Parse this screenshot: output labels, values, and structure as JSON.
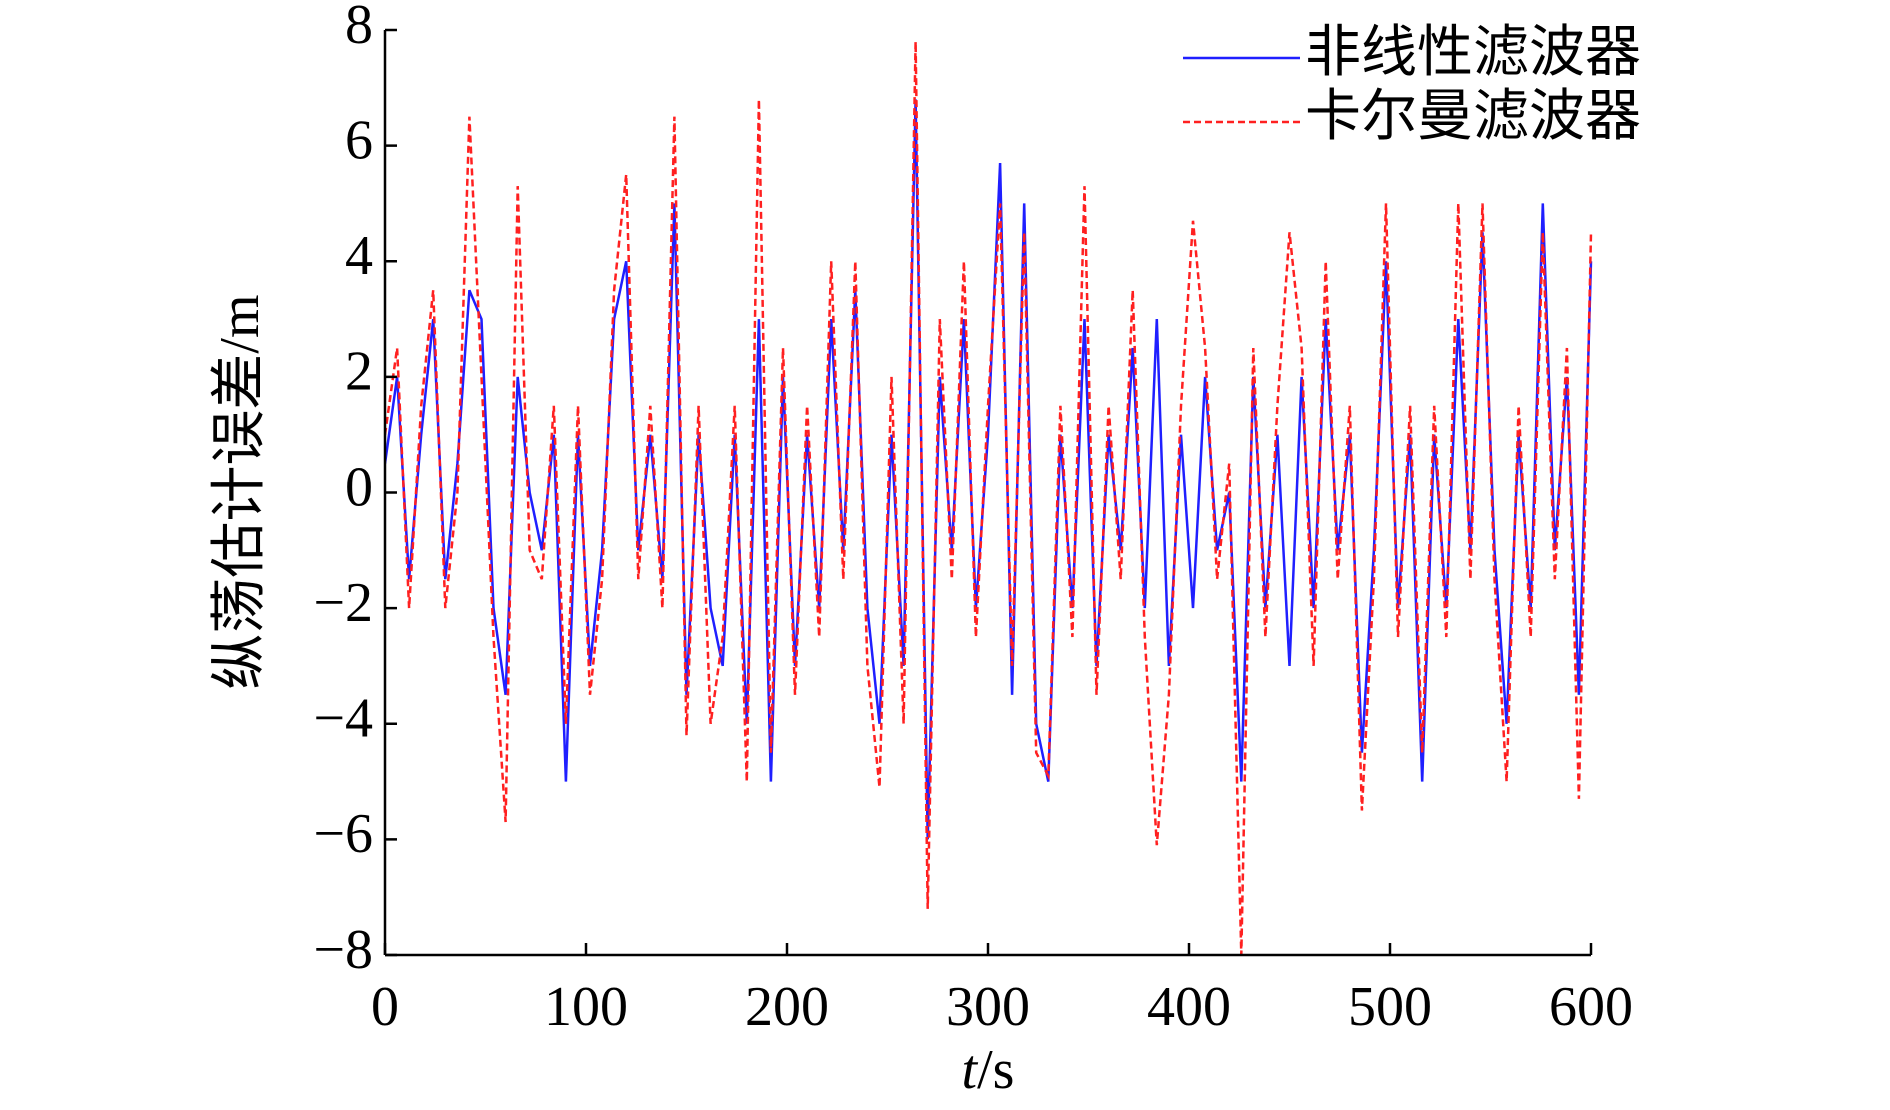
{
  "chart_data": {
    "type": "line",
    "xlabel": "t/s",
    "ylabel": "纵荡估计误差/m",
    "x": [
      0,
      6,
      12,
      18,
      24,
      30,
      36,
      42,
      48,
      54,
      60,
      66,
      72,
      78,
      84,
      90,
      96,
      102,
      108,
      114,
      120,
      126,
      132,
      138,
      144,
      150,
      156,
      162,
      168,
      174,
      180,
      186,
      192,
      198,
      204,
      210,
      216,
      222,
      228,
      234,
      240,
      246,
      252,
      258,
      264,
      270,
      276,
      282,
      288,
      294,
      300,
      306,
      312,
      318,
      324,
      330,
      336,
      342,
      348,
      354,
      360,
      366,
      372,
      378,
      384,
      390,
      396,
      402,
      408,
      414,
      420,
      426,
      432,
      438,
      444,
      450,
      456,
      462,
      468,
      474,
      480,
      486,
      492,
      498,
      504,
      510,
      516,
      522,
      528,
      534,
      540,
      546,
      552,
      558,
      564,
      570,
      576,
      582,
      588,
      594,
      600
    ],
    "series": [
      {
        "name": "非线性滤波器",
        "color": "#1f1fff",
        "dash": false,
        "values": [
          0.5,
          2,
          -1.5,
          1,
          3,
          -1.5,
          0.5,
          3.5,
          3,
          -2,
          -3.5,
          2,
          0,
          -1,
          1,
          -5,
          1,
          -3,
          -1,
          3,
          4,
          -1,
          1,
          -1.5,
          5,
          -3.5,
          1,
          -2,
          -3,
          1,
          -4,
          3,
          -5,
          2,
          -3,
          1,
          -2,
          3,
          -1,
          3.5,
          -2,
          -4,
          1,
          -3,
          6.8,
          -6,
          2,
          -1,
          3,
          -2,
          1,
          5.7,
          -3.5,
          5,
          -4,
          -5,
          1,
          -2,
          3,
          -3,
          1,
          -1,
          2.5,
          -2,
          3,
          -3,
          1,
          -2,
          2,
          -1,
          0,
          -5,
          2,
          -2,
          1,
          -3,
          2,
          -2,
          3,
          -1,
          1,
          -4.5,
          -1,
          4,
          -2,
          1,
          -5,
          1,
          -2,
          3,
          -1,
          4.5,
          -1,
          -4,
          1,
          -2,
          5,
          -1,
          2,
          -3.5,
          4
        ]
      },
      {
        "name": "卡尔曼滤波器",
        "color": "#ff2020",
        "dash": true,
        "values": [
          1,
          2.5,
          -2,
          1.5,
          3.5,
          -2,
          0,
          6.5,
          2,
          -2.5,
          -5.7,
          5.3,
          -1,
          -1.5,
          1.5,
          -4,
          1.5,
          -3.5,
          -1.5,
          3.5,
          5.5,
          -1.5,
          1.5,
          -2,
          6.5,
          -4.2,
          1.5,
          -4,
          -2.5,
          1.5,
          -5,
          6.8,
          -4.5,
          2.5,
          -3.5,
          1.5,
          -2.5,
          4,
          -1.5,
          4,
          -3,
          -5.1,
          2,
          -4,
          7.8,
          -7.2,
          3,
          -1.5,
          4,
          -2.5,
          1.5,
          5,
          -3,
          4.5,
          -4.5,
          -4.9,
          1.5,
          -2.5,
          5.3,
          -3.5,
          1.5,
          -1.5,
          3.5,
          -2.5,
          -6.1,
          -3.5,
          1.5,
          4.7,
          2.5,
          -1.5,
          0.5,
          -8,
          2.5,
          -2.5,
          1.5,
          4.5,
          2.5,
          -3,
          4,
          -1.5,
          1.5,
          -5.5,
          -1.5,
          5,
          -2.5,
          1.5,
          -4.5,
          1.5,
          -2.5,
          5,
          -1.5,
          5,
          -1.5,
          -5,
          1.5,
          -2.5,
          4.5,
          -1.5,
          2.5,
          -5.3,
          4.5
        ]
      }
    ],
    "xlim": [
      0,
      600
    ],
    "xticks": [
      0,
      100,
      200,
      300,
      400,
      500,
      600
    ],
    "ylim": [
      -8,
      8
    ],
    "yticks": [
      {
        "value": -8,
        "label": "−8"
      },
      {
        "value": -6,
        "label": "−6"
      },
      {
        "value": -4,
        "label": "−4"
      },
      {
        "value": -2,
        "label": "−2"
      },
      0,
      2,
      4,
      6,
      8
    ],
    "legend": "upper right"
  }
}
